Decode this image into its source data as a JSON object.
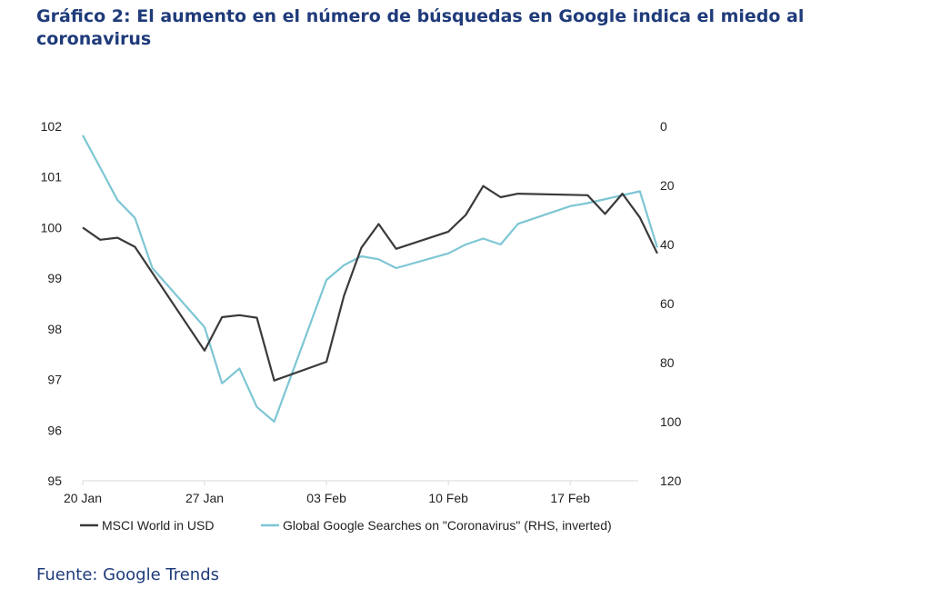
{
  "title": "Gráfico 2: El aumento en el número de búsquedas en Google indica el miedo al coronavirus",
  "source": "Fuente: Google Trends",
  "colors": {
    "msci": "#3a3a3a",
    "google": "#7dc6d4",
    "title": "#1f3b7a"
  },
  "chart_data": {
    "type": "line",
    "x_tick_labels": [
      "20 Jan",
      "27 Jan",
      "03 Feb",
      "10 Feb",
      "17 Feb"
    ],
    "y_left_ticks": [
      "102",
      "101",
      "100",
      "99",
      "98",
      "97",
      "96",
      "95"
    ],
    "y_right_ticks": [
      "0",
      "20",
      "40",
      "60",
      "80",
      "100",
      "120"
    ],
    "ylim_left": [
      95,
      102
    ],
    "ylim_right_inverted": [
      0,
      120
    ],
    "x_day_range": [
      0,
      32
    ],
    "series": [
      {
        "name": "MSCI World in USD",
        "axis": "left",
        "points": [
          [
            0,
            100.0
          ],
          [
            1,
            99.76
          ],
          [
            2,
            99.8
          ],
          [
            3,
            99.62
          ],
          [
            7,
            97.57
          ],
          [
            8,
            98.23
          ],
          [
            9,
            98.27
          ],
          [
            10,
            98.22
          ],
          [
            11,
            96.98
          ],
          [
            14,
            97.35
          ],
          [
            15,
            98.65
          ],
          [
            16,
            99.6
          ],
          [
            17,
            100.07
          ],
          [
            18,
            99.58
          ],
          [
            21,
            99.92
          ],
          [
            22,
            100.25
          ],
          [
            23,
            100.82
          ],
          [
            24,
            100.6
          ],
          [
            25,
            100.67
          ],
          [
            29,
            100.64
          ],
          [
            30,
            100.27
          ],
          [
            31,
            100.67
          ],
          [
            32,
            100.2
          ],
          [
            33,
            99.49
          ]
        ]
      },
      {
        "name": "Global Google Searches on \"Coronavirus\" (RHS, inverted)",
        "axis": "right",
        "points": [
          [
            0,
            3
          ],
          [
            1,
            14
          ],
          [
            2,
            25
          ],
          [
            3,
            31
          ],
          [
            4,
            48
          ],
          [
            7,
            68
          ],
          [
            8,
            87
          ],
          [
            9,
            82
          ],
          [
            10,
            95
          ],
          [
            11,
            100
          ],
          [
            14,
            52
          ],
          [
            15,
            47
          ],
          [
            16,
            44
          ],
          [
            17,
            45
          ],
          [
            18,
            48
          ],
          [
            21,
            43
          ],
          [
            22,
            40
          ],
          [
            23,
            38
          ],
          [
            24,
            40
          ],
          [
            25,
            33
          ],
          [
            28,
            27
          ],
          [
            29,
            26
          ],
          [
            32,
            22
          ],
          [
            33,
            41
          ]
        ]
      }
    ]
  }
}
